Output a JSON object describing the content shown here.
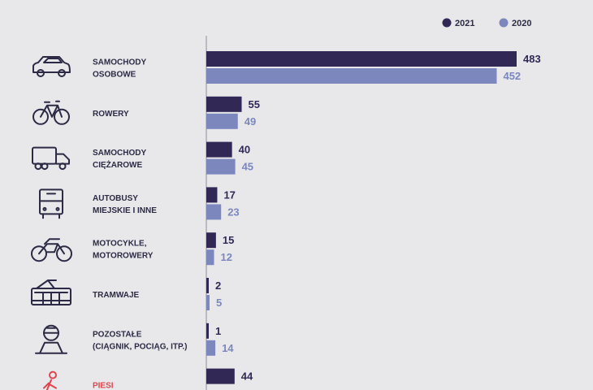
{
  "colors": {
    "series_2021": "#312856",
    "series_2020": "#7b87bd",
    "label": "#2c2a44",
    "highlight": "#e0434b",
    "axis": "#8e8e9a"
  },
  "chart_data": {
    "type": "bar",
    "orientation": "horizontal",
    "legend_position": "top-right",
    "xlim": [
      0,
      500
    ],
    "series": [
      {
        "name": "2021",
        "values": [
          483,
          55,
          40,
          17,
          15,
          2,
          1,
          44
        ]
      },
      {
        "name": "2020",
        "values": [
          452,
          49,
          45,
          23,
          12,
          5,
          14,
          null
        ]
      }
    ],
    "categories": [
      {
        "lines": [
          "SAMOCHODY",
          "OSOBOWE"
        ],
        "icon": "car-icon",
        "highlight": false
      },
      {
        "lines": [
          "ROWERY"
        ],
        "icon": "bicycle-icon",
        "highlight": false
      },
      {
        "lines": [
          "SAMOCHODY",
          "CIĘŻAROWE"
        ],
        "icon": "truck-icon",
        "highlight": false
      },
      {
        "lines": [
          "AUTOBUSY",
          "MIEJSKIE I INNE"
        ],
        "icon": "bus-icon",
        "highlight": false
      },
      {
        "lines": [
          "MOTOCYKLE,",
          "MOTOROWERY"
        ],
        "icon": "motorcycle-icon",
        "highlight": false
      },
      {
        "lines": [
          "TRAMWAJE"
        ],
        "icon": "tram-icon",
        "highlight": false
      },
      {
        "lines": [
          "POZOSTAŁE",
          "(CIĄGNIK, POCIĄG, ITP.)"
        ],
        "icon": "train-icon",
        "highlight": false
      },
      {
        "lines": [
          "PIESI"
        ],
        "icon": "pedestrian-icon",
        "highlight": true
      }
    ]
  }
}
